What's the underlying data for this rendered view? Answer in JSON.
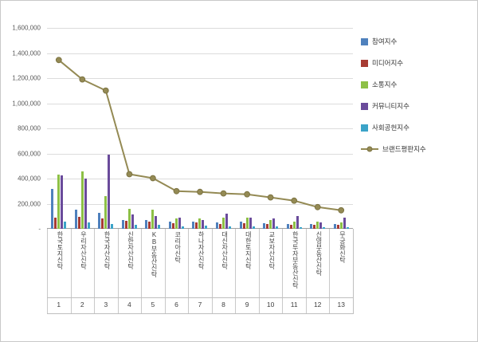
{
  "frame": {
    "background": "#ffffff",
    "border_color": "#c9c9c9"
  },
  "chart_data": {
    "type": "bar",
    "combo": "bar+line",
    "title": "",
    "xlabel": "",
    "ylabel": "",
    "ylim": [
      0,
      1600000
    ],
    "ytick_step": 200000,
    "ytick_labels": [
      "-",
      "200,000",
      "400,000",
      "600,000",
      "800,000",
      "1,000,000",
      "1,200,000",
      "1,400,000",
      "1,600,000"
    ],
    "grid": true,
    "legend_position": "right",
    "categories": [
      "한국토지신탁",
      "우리자산신탁",
      "한국자산신탁",
      "신한자산신탁",
      "KB부동산신탁",
      "코리아신탁",
      "하나자산신탁",
      "대신자산신탁",
      "대한토지신탁",
      "교보자산신탁",
      "한국투자부동산신탁",
      "신영부동산신탁",
      "무궁화신탁"
    ],
    "rank_labels": [
      "1",
      "2",
      "3",
      "4",
      "5",
      "6",
      "7",
      "8",
      "9",
      "10",
      "11",
      "12",
      "13"
    ],
    "series": [
      {
        "id": "participation-index",
        "name": "참여지수",
        "kind": "bar",
        "color": "#4F81BD",
        "values": [
          320000,
          150000,
          125000,
          70000,
          68000,
          60000,
          58000,
          52000,
          60000,
          42000,
          36000,
          40000,
          35000
        ]
      },
      {
        "id": "media-index",
        "name": "미디어지수",
        "kind": "bar",
        "color": "#A73B33",
        "values": [
          90000,
          96000,
          83000,
          64000,
          60000,
          42000,
          50000,
          40000,
          45000,
          36000,
          30000,
          30000,
          30000
        ]
      },
      {
        "id": "communication-index",
        "name": "소통지수",
        "kind": "bar",
        "color": "#8DC046",
        "values": [
          430000,
          460000,
          262000,
          160000,
          150000,
          80000,
          80000,
          92000,
          90000,
          72000,
          56000,
          55000,
          50000
        ]
      },
      {
        "id": "community-index",
        "name": "커뮤니티지수",
        "kind": "bar",
        "color": "#6A4B9B",
        "values": [
          428000,
          403000,
          589000,
          115000,
          100000,
          92000,
          70000,
          120000,
          90000,
          80000,
          100000,
          50000,
          90000
        ]
      },
      {
        "id": "social-contribution-index",
        "name": "사회공헌지수",
        "kind": "bar",
        "color": "#3BA3C8",
        "values": [
          58000,
          51000,
          38000,
          32000,
          30000,
          20000,
          25000,
          20000,
          20000,
          16000,
          15000,
          15000,
          15000
        ]
      },
      {
        "id": "brand-reputation-index",
        "name": "브랜드평판지수",
        "kind": "line",
        "color": "#948A54",
        "values": [
          1344000,
          1190000,
          1101000,
          435000,
          403000,
          300000,
          294000,
          282000,
          275000,
          250000,
          224000,
          173000,
          147000
        ]
      }
    ]
  }
}
